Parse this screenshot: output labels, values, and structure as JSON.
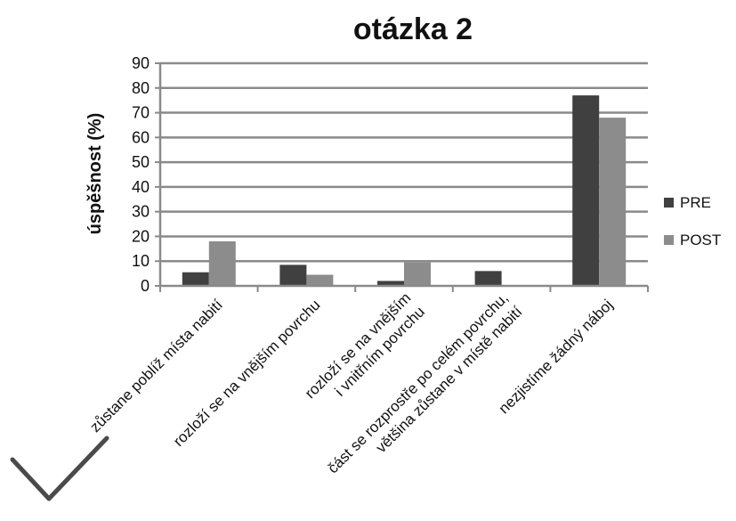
{
  "chart_data": {
    "type": "bar",
    "title": "otázka 2",
    "xlabel": "",
    "ylabel": "úspěšnost (%)",
    "ylim": [
      0,
      90
    ],
    "yticks": [
      0,
      10,
      20,
      30,
      40,
      50,
      60,
      70,
      80,
      90
    ],
    "grid": true,
    "legend_position": "right",
    "categories": [
      [
        "zůstane poblíž místa nabití"
      ],
      [
        "rozloží se na vnějším povrchu"
      ],
      [
        "rozloží se na vnějším",
        "i vnitřním povrchu"
      ],
      [
        "část se rozprostře po celém povrchu,",
        "většina zůstane v místě nabití"
      ],
      [
        "nezjistíme žádný náboj"
      ]
    ],
    "series": [
      {
        "name": "PRE",
        "color": "#404040",
        "values": [
          5.5,
          8.5,
          2,
          6,
          77
        ]
      },
      {
        "name": "POST",
        "color": "#8c8c8c",
        "values": [
          18,
          4.5,
          9.5,
          0,
          68
        ]
      }
    ],
    "correct_marker": {
      "category_index": 0,
      "icon": "checkmark-icon"
    }
  }
}
